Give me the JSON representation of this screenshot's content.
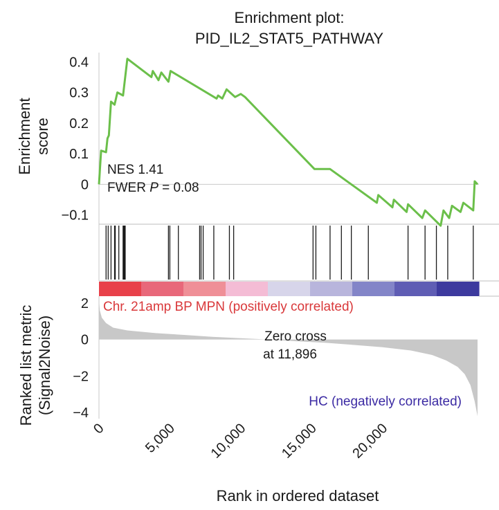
{
  "chart_data": {
    "type": "line",
    "title_line1": "Enrichment plot:",
    "title_line2": "PID_IL2_STAT5_PATHWAY",
    "es_panel": {
      "ylabel_line1": "Enrichment",
      "ylabel_line2": "score",
      "ylim": [
        -0.13,
        0.43
      ],
      "yticks": [
        0.4,
        0.3,
        0.2,
        0.1,
        0,
        -0.1
      ],
      "ytick_labels": [
        "0.4",
        "0.3",
        "0.2",
        "0.1",
        "0",
        "−0.1"
      ],
      "series_color": "#6bbf4a",
      "points": [
        [
          0,
          0
        ],
        [
          150,
          0.11
        ],
        [
          500,
          0.105
        ],
        [
          600,
          0.15
        ],
        [
          700,
          0.16
        ],
        [
          850,
          0.27
        ],
        [
          1100,
          0.26
        ],
        [
          1300,
          0.3
        ],
        [
          1700,
          0.29
        ],
        [
          2000,
          0.41
        ],
        [
          3700,
          0.35
        ],
        [
          3800,
          0.37
        ],
        [
          4200,
          0.34
        ],
        [
          4400,
          0.365
        ],
        [
          4900,
          0.335
        ],
        [
          5050,
          0.37
        ],
        [
          8300,
          0.28
        ],
        [
          8400,
          0.29
        ],
        [
          8700,
          0.28
        ],
        [
          9000,
          0.31
        ],
        [
          9600,
          0.285
        ],
        [
          10000,
          0.295
        ],
        [
          10300,
          0.285
        ],
        [
          15200,
          0.05
        ],
        [
          16300,
          0.05
        ],
        [
          19600,
          -0.06
        ],
        [
          19700,
          -0.035
        ],
        [
          20700,
          -0.075
        ],
        [
          20800,
          -0.05
        ],
        [
          21700,
          -0.09
        ],
        [
          21800,
          -0.065
        ],
        [
          22800,
          -0.11
        ],
        [
          23000,
          -0.085
        ],
        [
          24100,
          -0.135
        ],
        [
          24300,
          -0.085
        ],
        [
          24700,
          -0.11
        ],
        [
          24900,
          -0.07
        ],
        [
          25500,
          -0.09
        ],
        [
          25700,
          -0.06
        ],
        [
          26400,
          -0.085
        ],
        [
          26500,
          0.01
        ],
        [
          26700,
          0.0
        ]
      ],
      "annotation_nes": "NES 1.41",
      "annotation_fwer_prefix": "FWER ",
      "annotation_fwer_p": "P",
      "annotation_fwer_value": " = 0.08"
    },
    "hits": [
      500,
      650,
      850,
      1100,
      1150,
      1400,
      1700,
      1750,
      1800,
      1850,
      4900,
      5000,
      5600,
      7100,
      7200,
      7350,
      8100,
      9200,
      9500,
      15100,
      15300,
      16300,
      17100,
      17800,
      19000,
      21800,
      23000,
      23800,
      24600,
      26400
    ],
    "colorbar_colors": [
      "#e8414a",
      "#e8687a",
      "#ef8f97",
      "#f4bcd5",
      "#d7d5ea",
      "#b8b5dc",
      "#8385c8",
      "#5f5db4",
      "#3d3a9e"
    ],
    "metric_panel": {
      "ylabel_line1": "Ranked list metric",
      "ylabel_line2": "(Signal2Noise)",
      "ylim": [
        -4.3,
        2.3
      ],
      "yticks": [
        2,
        0,
        -2,
        -4
      ],
      "ytick_labels": [
        "2",
        "0",
        "−2",
        "−4"
      ],
      "fill_color": "#c8c8c8",
      "positive_label": "Chr. 21amp BP MPN (positively correlated)",
      "positive_color": "#d9383a",
      "negative_label": "HC (negatively correlated)",
      "negative_color": "#3b2aa3",
      "zero_cross_line1": "Zero cross",
      "zero_cross_line2": "at 11,896",
      "curve": [
        [
          0,
          2.2
        ],
        [
          60,
          1.6
        ],
        [
          200,
          1.2
        ],
        [
          500,
          0.9
        ],
        [
          1000,
          0.65
        ],
        [
          2000,
          0.5
        ],
        [
          4000,
          0.35
        ],
        [
          6000,
          0.25
        ],
        [
          8000,
          0.15
        ],
        [
          10000,
          0.07
        ],
        [
          11896,
          0
        ],
        [
          14000,
          -0.1
        ],
        [
          16000,
          -0.18
        ],
        [
          18000,
          -0.3
        ],
        [
          20000,
          -0.42
        ],
        [
          22000,
          -0.6
        ],
        [
          23500,
          -0.85
        ],
        [
          24500,
          -1.15
        ],
        [
          25300,
          -1.5
        ],
        [
          25800,
          -1.9
        ],
        [
          26200,
          -2.5
        ],
        [
          26500,
          -3.4
        ],
        [
          26700,
          -4.2
        ]
      ]
    },
    "xlabel": "Rank in ordered dataset",
    "xlim": [
      0,
      26800
    ],
    "xticks": [
      0,
      5000,
      10000,
      15000,
      20000
    ],
    "xtick_labels": [
      "0",
      "5,000",
      "10,000",
      "15,000",
      "20,000"
    ]
  }
}
